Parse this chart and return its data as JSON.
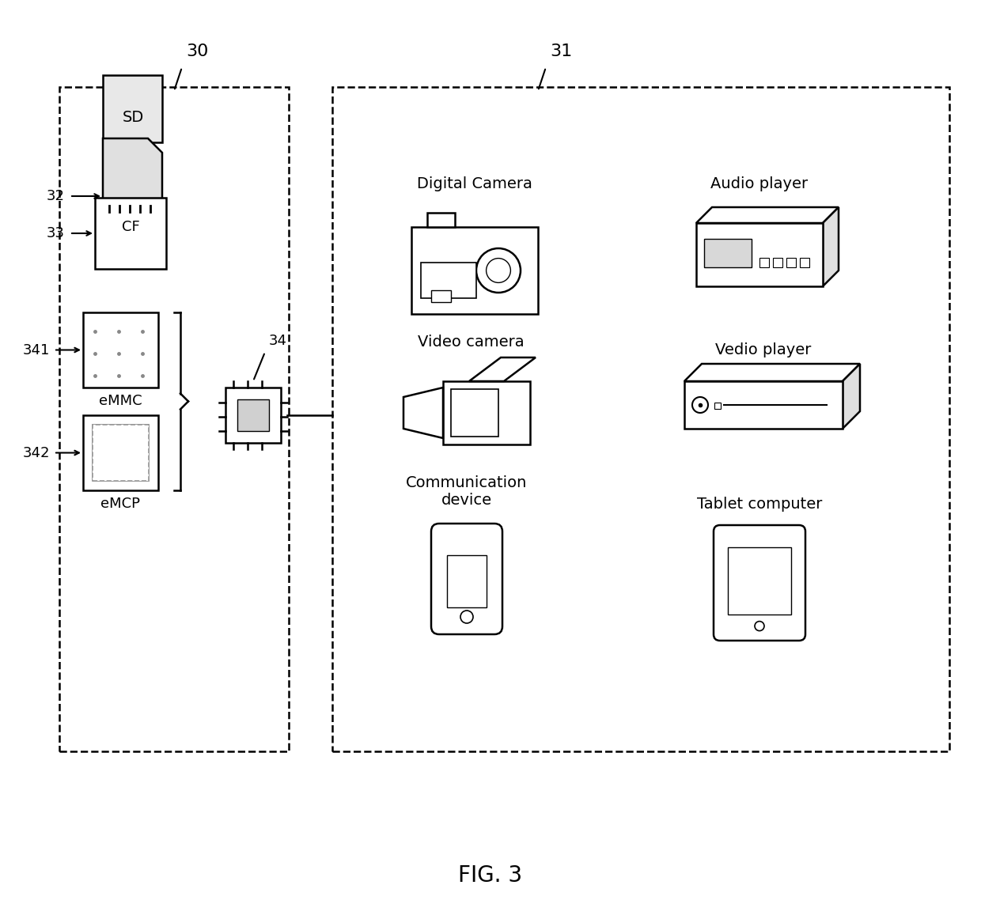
{
  "title": "FIG. 3",
  "bg_color": "#ffffff",
  "line_color": "#000000",
  "box30_label": "30",
  "box31_label": "31",
  "label_32": "32",
  "label_33": "33",
  "label_34": "34",
  "label_341": "341",
  "label_342": "342",
  "text_SD": "SD",
  "text_CF": "CF",
  "text_eMMC": "eMMC",
  "text_eMCP": "eMCP",
  "text_digital_camera": "Digital Camera",
  "text_audio_player": "Audio player",
  "text_video_camera": "Video camera",
  "text_vedio_player": "Vedio player",
  "text_comm_device": "Communication\ndevice",
  "text_tablet": "Tablet computer",
  "font_size_labels": 13,
  "font_size_title": 20,
  "font_size_device": 14
}
